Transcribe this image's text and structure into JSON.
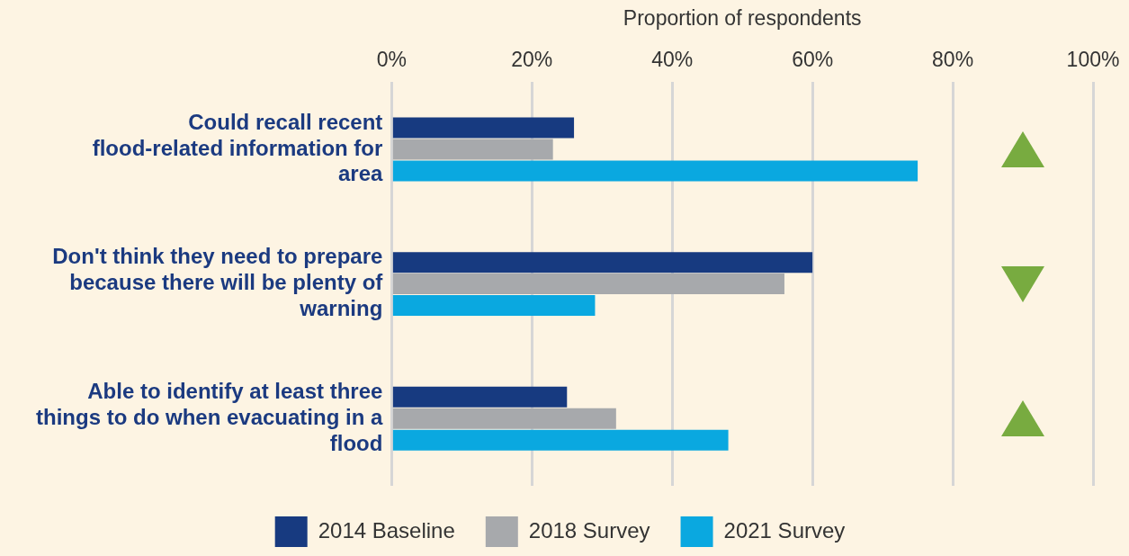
{
  "chart_data": {
    "type": "bar",
    "orientation": "horizontal",
    "xlabel": "Proportion of respondents",
    "categories": [
      "Could recall recent flood-related information for area",
      "Don't think they need to prepare because there will be plenty of warning",
      "Able to identify at least three things to do when evacuating in a flood"
    ],
    "series": [
      {
        "name": "2014 Baseline",
        "color": "#173a80",
        "values": [
          26,
          60,
          25
        ]
      },
      {
        "name": "2018 Survey",
        "color": "#a7a9ac",
        "values": [
          23,
          56,
          32
        ]
      },
      {
        "name": "2021 Survey",
        "color": "#0aa8e0",
        "values": [
          75,
          29,
          48
        ]
      }
    ],
    "xlim": [
      0,
      100
    ],
    "xticks": [
      {
        "value": 0,
        "label": "0%"
      },
      {
        "value": 20,
        "label": "20%"
      },
      {
        "value": 40,
        "label": "40%"
      },
      {
        "value": 60,
        "label": "60%"
      },
      {
        "value": 80,
        "label": "80%"
      },
      {
        "value": 100,
        "label": "100%"
      }
    ],
    "grid": "x",
    "legend": "bottom"
  }
}
